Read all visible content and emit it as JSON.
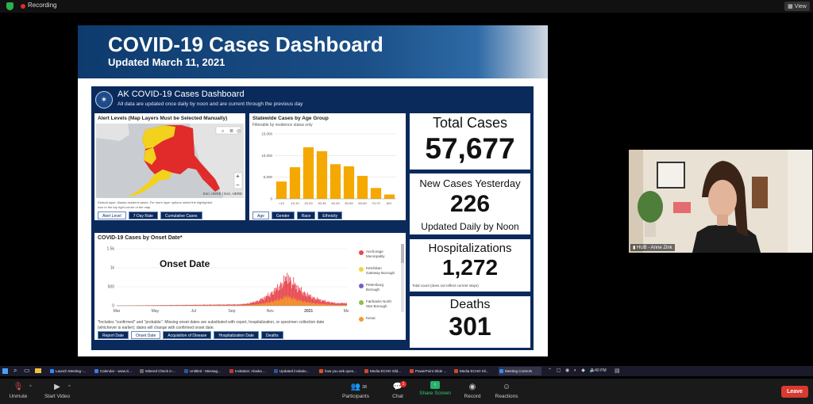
{
  "topbar": {
    "recording_label": "Recording",
    "view_label": "View"
  },
  "slide": {
    "title": "COVID-19 Cases Dashboard",
    "subtitle": "Updated March 11, 2021"
  },
  "dashboard": {
    "title": "AK COVID-19 Cases Dashboard",
    "subtitle": "All data are updated once daily by noon and are current through the previous day",
    "map_panel": {
      "title": "Alert Levels (Map Layers Must be Selected Manually)",
      "attribution": "Esri, HERE | Esri, HERE",
      "footnote_1": "Default layer: Alaska resident cases. For more layer options select the highlighted",
      "footnote_2": "icon in the top right corner of the map.",
      "zoom_in": "+",
      "zoom_out": "−",
      "tabs": [
        "Alert Level",
        "7-Day Rate",
        "Cumulative Cases"
      ]
    },
    "age_panel": {
      "title": "Statewide Cases by Age Group",
      "subtitle": "Filterable by residence status only",
      "tabs": [
        "Age",
        "Gender",
        "Race",
        "Ethnicity"
      ]
    },
    "onset_panel": {
      "title": "COVID-19 Cases by Onset Date*",
      "overlay_label": "Onset Date",
      "note_1": "*Includes \"confirmed\" and \"probable\". Missing onset dates are substituted with report, hospitalization, or specimen collection date",
      "note_2": "(whichever is earlier); dates will change with confirmed onset date.",
      "legend": [
        {
          "label_1": "Anchorage",
          "label_2": "Municipality",
          "color": "#e8474f"
        },
        {
          "label_1": "Ketchikan",
          "label_2": "Gateway Borough",
          "color": "#f2d43a"
        },
        {
          "label_1": "Petersburg",
          "label_2": "Borough",
          "color": "#7a5cc4"
        },
        {
          "label_1": "Fairbanks North",
          "label_2": "Star Borough",
          "color": "#8bbf4a"
        },
        {
          "label_1": "Kenai",
          "label_2": "",
          "color": "#f39a2a"
        }
      ],
      "tabs": [
        "Report Date",
        "Onset Date",
        "Acquisition of Disease",
        "Hospitalization Date",
        "Deaths"
      ]
    },
    "stats": {
      "total_cases": {
        "label": "Total Cases",
        "value": "57,677"
      },
      "new_cases": {
        "label": "New Cases Yesterday",
        "value": "226",
        "note": "Updated Daily by Noon"
      },
      "hospitalizations": {
        "label": "Hospitalizations",
        "value": "1,272",
        "note": "Total count (does not reflect current stays)"
      },
      "deaths": {
        "label": "Deaths",
        "value": "301"
      }
    }
  },
  "chart_data": [
    {
      "type": "bar",
      "title": "Statewide Cases by Age Group",
      "categories": [
        "<10",
        "10-19",
        "20-29",
        "30-39",
        "40-49",
        "50-59",
        "60-69",
        "70-79",
        "80+"
      ],
      "values": [
        4000,
        7300,
        11900,
        11000,
        8000,
        7500,
        5300,
        2500,
        1000
      ],
      "ylim": [
        0,
        15000
      ],
      "yticks": [
        "15,000",
        "10,000",
        "5,000",
        "0"
      ],
      "ytick_values": [
        15000,
        10000,
        5000,
        0
      ],
      "bar_color": "#f5a800",
      "grid": true
    },
    {
      "type": "bar",
      "title": "COVID-19 Cases by Onset Date*",
      "x_ticks": [
        "Mar",
        "May",
        "Jul",
        "Sep",
        "Nov",
        "2021",
        "Mar"
      ],
      "x_tick_months": [
        0,
        2,
        4,
        6,
        8,
        10,
        12
      ],
      "yticks": [
        "1.5k",
        "1k",
        "500",
        "0"
      ],
      "ytick_values": [
        1500,
        1000,
        500,
        0
      ],
      "ylim": [
        0,
        1500
      ],
      "x_range_months": [
        0,
        12
      ],
      "series_shape": "daily counts rising from near 0 in spring 2020 to a peak near 1,000 in late November 2020, declining to about 100 by March 2021",
      "peak": {
        "month": 8.9,
        "value": 1000
      }
    }
  ],
  "video": {
    "participant_name": "HUB - Anne Zink"
  },
  "taskbar": {
    "items": [
      {
        "label": "Launch Meeting -...",
        "color": "#2d8cff"
      },
      {
        "label": "Calendar - www.zi...",
        "color": "#3b7ddd"
      },
      {
        "label": "Mitered Check in ...",
        "color": "#666"
      },
      {
        "label": "Untitled - Messag...",
        "color": "#2b579a"
      },
      {
        "label": "Invitation: Alaska ...",
        "color": "#c0392b"
      },
      {
        "label": "Updated invitatio...",
        "color": "#2b579a"
      },
      {
        "label": "how you ask ques...",
        "color": "#e94e1b"
      },
      {
        "label": "Media ECHO Slid...",
        "color": "#d24726"
      },
      {
        "label": "PowerPoint Slide ...",
        "color": "#d24726"
      },
      {
        "label": "Media ECHO Sli...",
        "color": "#d24726"
      },
      {
        "label": "Meeting Controls",
        "color": "#2d8cff"
      }
    ],
    "clock": "1:40 PM"
  },
  "controls": {
    "unmute": "Unmute",
    "start_video": "Start Video",
    "participants": "Participants",
    "participants_count": "38",
    "chat": "Chat",
    "chat_badge": "1",
    "share_screen": "Share Screen",
    "record": "Record",
    "reactions": "Reactions",
    "leave": "Leave"
  }
}
